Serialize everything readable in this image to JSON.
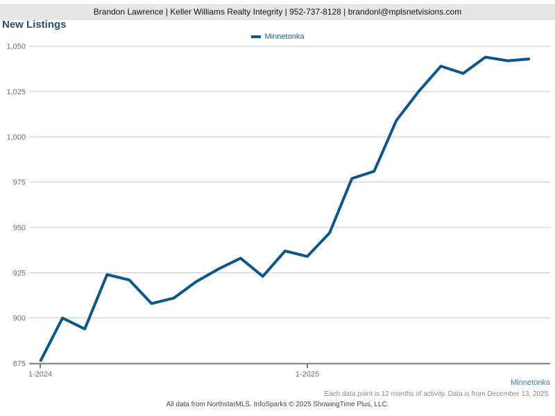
{
  "header": {
    "contact_line": "Brandon Lawrence | Keller Williams Realty Integrity | 952-737-8128 | brandonl@mplsnetvisions.com"
  },
  "title": "New Listings",
  "legend": {
    "label": "Minnetonka"
  },
  "colors": {
    "line": "#0d568c",
    "legend_text": "#1f5c99",
    "title_text": "#2b4c6f",
    "axis": "#7a7a7a",
    "gridline": "#c9c9c9",
    "tick_label": "#6e6e6e",
    "link_text": "#4677ae",
    "footer_note_text": "#8b8b8b",
    "footer_credit_text": "#444444",
    "header_bg": "#e6e6e6"
  },
  "chart_data": {
    "type": "line",
    "title": "New Listings",
    "x": [
      "1-2024",
      "2-2024",
      "3-2024",
      "4-2024",
      "5-2024",
      "6-2024",
      "7-2024",
      "8-2024",
      "9-2024",
      "10-2024",
      "11-2024",
      "12-2024",
      "1-2025",
      "2-2025",
      "3-2025",
      "4-2025",
      "5-2025",
      "6-2025",
      "7-2025",
      "8-2025",
      "9-2025",
      "10-2025",
      "11-2025"
    ],
    "series": [
      {
        "name": "Minnetonka",
        "color": "#0d568c",
        "values": [
          876,
          900,
          894,
          924,
          921,
          908,
          911,
          920,
          927,
          933,
          923,
          937,
          934,
          947,
          977,
          981,
          1009,
          1025,
          1039,
          1035,
          1044,
          1042,
          1043
        ]
      }
    ],
    "ylim": [
      875,
      1050
    ],
    "ytick_step": 25,
    "ytick_labels": [
      "875",
      "900",
      "925",
      "950",
      "975",
      "1,000",
      "1,025",
      "1,050"
    ],
    "x_tick_labels": [
      "1-2024",
      "1-2025"
    ],
    "x_tick_indices": [
      0,
      12
    ],
    "grid": "horizontal",
    "legend_position": "top-center"
  },
  "footer": {
    "note": "Each data point is 12 months of activity. Data is from December 13, 2025.",
    "credit": "All data from NorthstarMLS. InfoSparks © 2025 ShowingTime Plus, LLC.",
    "link_label": "Minnetonka"
  }
}
